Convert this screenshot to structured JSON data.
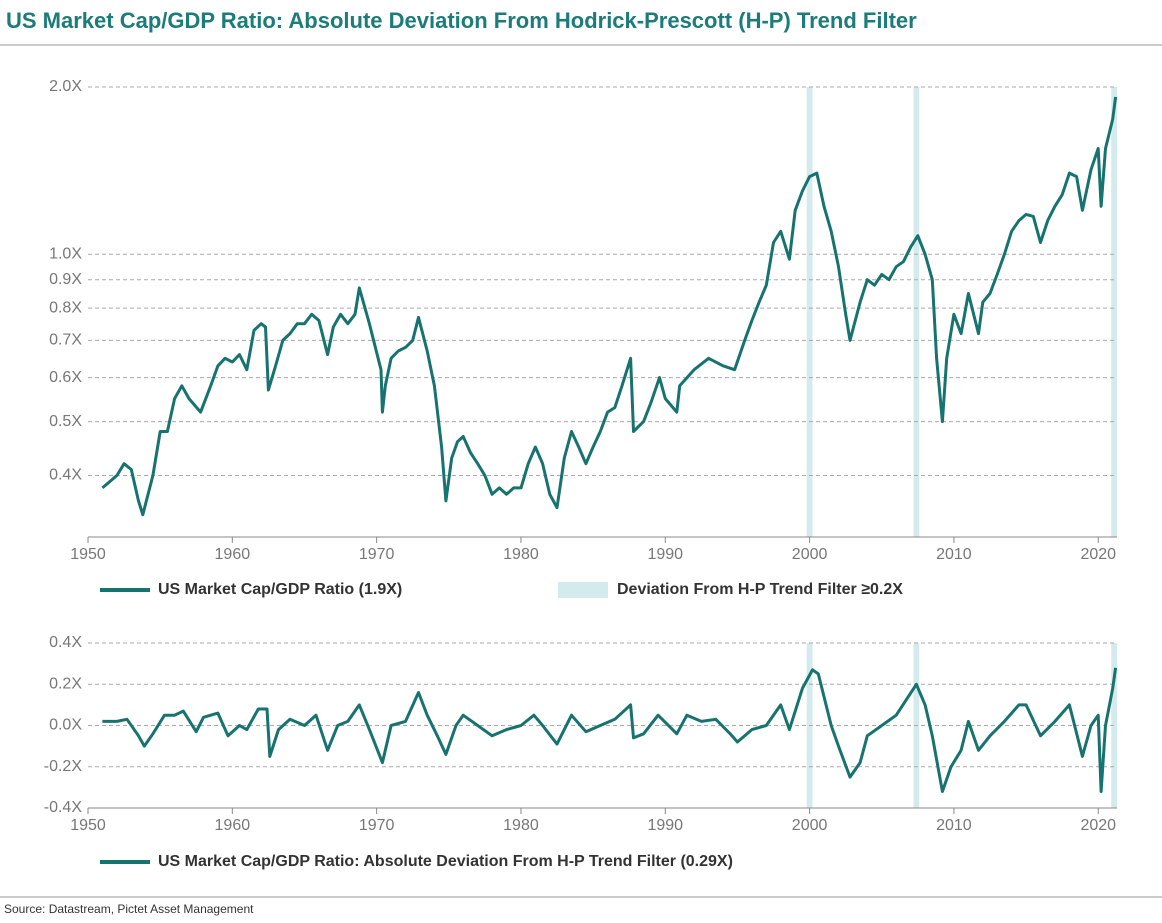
{
  "header": {
    "title": "US Market Cap/GDP Ratio: Absolute Deviation From Hodrick-Prescott (H-P) Trend Filter"
  },
  "footer": {
    "source": "Source: Datastream, Pictet Asset Management"
  },
  "chart_data": [
    {
      "type": "line",
      "yscale": "log",
      "grid": true,
      "xlim": [
        1950,
        2021.3
      ],
      "xticks": [
        1950,
        1960,
        1970,
        1980,
        1990,
        2000,
        2010,
        2020
      ],
      "ylim": [
        0.31,
        2.0
      ],
      "yticks": [
        {
          "value": 0.4,
          "label": "0.4X"
        },
        {
          "value": 0.5,
          "label": "0.5X"
        },
        {
          "value": 0.6,
          "label": "0.6X"
        },
        {
          "value": 0.7,
          "label": "0.7X"
        },
        {
          "value": 0.8,
          "label": "0.8X"
        },
        {
          "value": 0.9,
          "label": "0.9X"
        },
        {
          "value": 1.0,
          "label": "1.0X"
        },
        {
          "value": 2.0,
          "label": "2.0X"
        }
      ],
      "shaded_regions": [
        [
          1999.8,
          2000.2
        ],
        [
          2007.2,
          2007.6
        ],
        [
          2020.9,
          2021.3
        ]
      ],
      "shade_color": "#d3ebec",
      "shade_label": "Deviation From H-P Trend Filter ≥0.2X",
      "x": [
        1951.0,
        1952.0,
        1952.5,
        1953.0,
        1953.5,
        1953.8,
        1954.5,
        1955.0,
        1955.5,
        1956.0,
        1956.5,
        1957.0,
        1957.8,
        1958.5,
        1959.0,
        1959.5,
        1960.0,
        1960.5,
        1961.0,
        1961.5,
        1962.0,
        1962.3,
        1962.5,
        1963.0,
        1963.5,
        1964.0,
        1964.5,
        1965.0,
        1965.5,
        1966.0,
        1966.6,
        1967.0,
        1967.5,
        1968.0,
        1968.5,
        1968.8,
        1969.5,
        1970.3,
        1970.4,
        1970.6,
        1971.0,
        1971.5,
        1972.0,
        1972.5,
        1972.9,
        1973.5,
        1974.0,
        1974.5,
        1974.8,
        1975.2,
        1975.6,
        1976.0,
        1976.5,
        1977.0,
        1977.5,
        1978.0,
        1978.5,
        1979.0,
        1979.5,
        1980.0,
        1980.5,
        1981.0,
        1981.5,
        1982.0,
        1982.5,
        1983.0,
        1983.5,
        1984.0,
        1984.5,
        1985.0,
        1985.5,
        1986.0,
        1986.5,
        1987.0,
        1987.6,
        1987.8,
        1988.5,
        1989.0,
        1989.6,
        1990.0,
        1990.8,
        1991.0,
        1992.0,
        1993.0,
        1994.0,
        1994.8,
        1995.5,
        1996.0,
        1996.5,
        1997.0,
        1997.5,
        1998.0,
        1998.6,
        1999.0,
        1999.5,
        2000.0,
        2000.5,
        2001.0,
        2001.5,
        2002.0,
        2002.5,
        2002.8,
        2003.5,
        2004.0,
        2004.5,
        2005.0,
        2005.5,
        2006.0,
        2006.5,
        2007.0,
        2007.5,
        2008.0,
        2008.5,
        2008.8,
        2009.2,
        2009.5,
        2010.0,
        2010.5,
        2011.0,
        2011.7,
        2012.0,
        2012.5,
        2013.0,
        2013.5,
        2014.0,
        2014.5,
        2015.0,
        2015.5,
        2016.0,
        2016.5,
        2017.0,
        2017.5,
        2018.0,
        2018.5,
        2018.9,
        2019.5,
        2020.0,
        2020.2,
        2020.5,
        2021.0,
        2021.2
      ],
      "series": [
        {
          "name": "US Market Cap/GDP Ratio (1.9X)",
          "color": "#17736f",
          "values": [
            0.38,
            0.4,
            0.42,
            0.41,
            0.36,
            0.34,
            0.4,
            0.48,
            0.48,
            0.55,
            0.58,
            0.55,
            0.52,
            0.58,
            0.63,
            0.65,
            0.64,
            0.66,
            0.62,
            0.73,
            0.75,
            0.74,
            0.57,
            0.63,
            0.7,
            0.72,
            0.75,
            0.75,
            0.78,
            0.76,
            0.66,
            0.74,
            0.78,
            0.75,
            0.78,
            0.87,
            0.75,
            0.62,
            0.52,
            0.58,
            0.65,
            0.67,
            0.68,
            0.7,
            0.77,
            0.67,
            0.58,
            0.45,
            0.36,
            0.43,
            0.46,
            0.47,
            0.44,
            0.42,
            0.4,
            0.37,
            0.38,
            0.37,
            0.38,
            0.38,
            0.42,
            0.45,
            0.42,
            0.37,
            0.35,
            0.43,
            0.48,
            0.45,
            0.42,
            0.45,
            0.48,
            0.52,
            0.53,
            0.58,
            0.65,
            0.48,
            0.5,
            0.54,
            0.6,
            0.55,
            0.52,
            0.58,
            0.62,
            0.65,
            0.63,
            0.62,
            0.7,
            0.76,
            0.82,
            0.88,
            1.05,
            1.1,
            0.98,
            1.2,
            1.3,
            1.38,
            1.4,
            1.22,
            1.1,
            0.95,
            0.78,
            0.7,
            0.82,
            0.9,
            0.88,
            0.92,
            0.9,
            0.95,
            0.97,
            1.03,
            1.08,
            1.0,
            0.9,
            0.65,
            0.5,
            0.65,
            0.78,
            0.72,
            0.85,
            0.72,
            0.82,
            0.85,
            0.92,
            1.0,
            1.1,
            1.15,
            1.18,
            1.17,
            1.05,
            1.15,
            1.22,
            1.28,
            1.4,
            1.38,
            1.2,
            1.42,
            1.55,
            1.22,
            1.55,
            1.75,
            1.92
          ]
        }
      ]
    },
    {
      "type": "line",
      "yscale": "linear",
      "grid": true,
      "xlim": [
        1950,
        2021.3
      ],
      "xticks": [
        1950,
        1960,
        1970,
        1980,
        1990,
        2000,
        2010,
        2020
      ],
      "ylim": [
        -0.4,
        0.4
      ],
      "yticks": [
        {
          "value": -0.4,
          "label": "-0.4X"
        },
        {
          "value": -0.2,
          "label": "-0.2X"
        },
        {
          "value": 0.0,
          "label": "0.0X"
        },
        {
          "value": 0.2,
          "label": "0.2X"
        },
        {
          "value": 0.4,
          "label": "0.4X"
        }
      ],
      "shaded_regions": [
        [
          1999.8,
          2000.2
        ],
        [
          2007.2,
          2007.6
        ],
        [
          2020.9,
          2021.3
        ]
      ],
      "shade_color": "#d3ebec",
      "x": [
        1951.0,
        1952.0,
        1952.7,
        1953.5,
        1953.9,
        1954.5,
        1955.3,
        1956.0,
        1956.6,
        1957.5,
        1958.0,
        1959.0,
        1959.7,
        1960.5,
        1961.0,
        1961.8,
        1962.4,
        1962.6,
        1963.2,
        1964.0,
        1965.0,
        1965.8,
        1966.6,
        1967.3,
        1968.0,
        1968.8,
        1969.5,
        1970.4,
        1971.0,
        1972.0,
        1972.9,
        1973.5,
        1974.2,
        1974.8,
        1975.5,
        1976.0,
        1977.0,
        1978.0,
        1979.0,
        1980.0,
        1980.9,
        1981.5,
        1982.5,
        1983.5,
        1984.5,
        1985.5,
        1986.5,
        1987.6,
        1987.8,
        1988.5,
        1989.5,
        1990.8,
        1991.5,
        1992.5,
        1993.5,
        1994.5,
        1995.0,
        1996.0,
        1997.0,
        1998.0,
        1998.6,
        1999.5,
        2000.2,
        2000.6,
        2001.5,
        2002.0,
        2002.8,
        2003.5,
        2004.0,
        2005.0,
        2006.0,
        2007.4,
        2008.0,
        2008.5,
        2009.2,
        2009.8,
        2010.5,
        2011.0,
        2011.7,
        2012.5,
        2013.5,
        2014.5,
        2015.0,
        2016.0,
        2017.0,
        2018.0,
        2018.9,
        2019.5,
        2020.0,
        2020.2,
        2020.5,
        2021.0,
        2021.2
      ],
      "series": [
        {
          "name": "US Market Cap/GDP Ratio: Absolute Deviation From H-P Trend Filter (0.29X)",
          "color": "#17736f",
          "values": [
            0.02,
            0.02,
            0.03,
            -0.05,
            -0.1,
            -0.04,
            0.05,
            0.05,
            0.07,
            -0.03,
            0.04,
            0.06,
            -0.05,
            0.0,
            -0.02,
            0.08,
            0.08,
            -0.15,
            -0.02,
            0.03,
            0.0,
            0.05,
            -0.12,
            0.0,
            0.02,
            0.1,
            -0.02,
            -0.18,
            0.0,
            0.02,
            0.16,
            0.05,
            -0.05,
            -0.14,
            0.0,
            0.05,
            0.0,
            -0.05,
            -0.02,
            0.0,
            0.05,
            0.0,
            -0.09,
            0.05,
            -0.03,
            0.0,
            0.03,
            0.1,
            -0.06,
            -0.04,
            0.05,
            -0.04,
            0.05,
            0.02,
            0.03,
            -0.04,
            -0.08,
            -0.02,
            0.0,
            0.1,
            -0.02,
            0.18,
            0.27,
            0.25,
            0.0,
            -0.1,
            -0.25,
            -0.18,
            -0.05,
            0.0,
            0.05,
            0.2,
            0.1,
            -0.05,
            -0.32,
            -0.2,
            -0.12,
            0.02,
            -0.12,
            -0.05,
            0.02,
            0.1,
            0.1,
            -0.05,
            0.02,
            0.1,
            -0.15,
            0.0,
            0.05,
            -0.32,
            0.0,
            0.18,
            0.28
          ]
        }
      ]
    }
  ]
}
